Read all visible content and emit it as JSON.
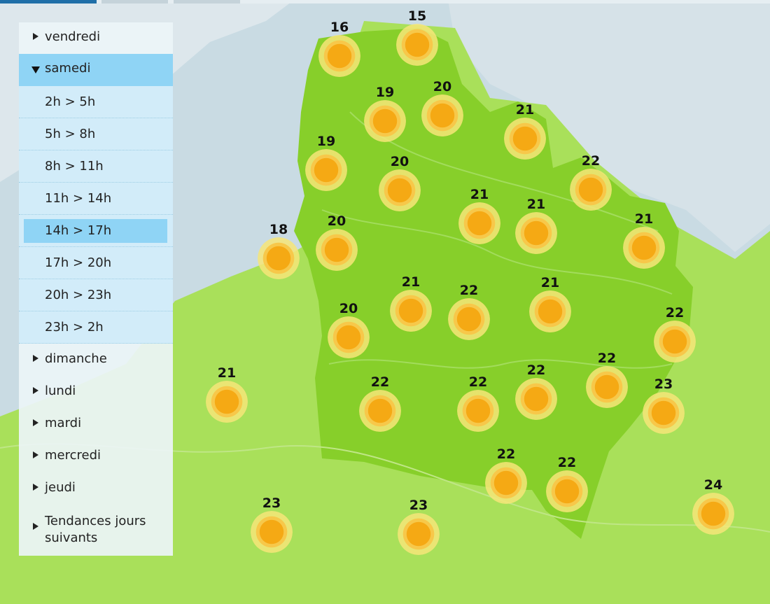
{
  "menu": {
    "days": [
      {
        "label": "vendredi",
        "open": false
      },
      {
        "label": "samedi",
        "open": true
      },
      {
        "label": "dimanche",
        "open": false
      },
      {
        "label": "lundi",
        "open": false
      },
      {
        "label": "mardi",
        "open": false
      },
      {
        "label": "mercredi",
        "open": false
      },
      {
        "label": "jeudi",
        "open": false
      }
    ],
    "time_slots": [
      "2h > 5h",
      "5h > 8h",
      "8h > 11h",
      "11h > 14h",
      "14h > 17h",
      "17h > 20h",
      "20h > 23h",
      "23h > 2h"
    ],
    "active_slot": "14h > 17h",
    "trends_line1": "Tendances jours",
    "trends_line2": "suivants"
  },
  "map": {
    "colors": {
      "sea": "#c9dbe3",
      "land_outer": "#a9e05a",
      "region_fill": "#87cf2a",
      "sun_core": "#f5a914"
    },
    "weather_icon": "sun-icon",
    "temperatures": [
      16,
      15,
      19,
      20,
      21,
      19,
      20,
      22,
      21,
      21,
      21,
      18,
      20,
      21,
      22,
      21,
      22,
      20,
      22,
      21,
      22,
      22,
      22,
      23,
      22,
      22,
      23,
      23,
      24
    ]
  }
}
